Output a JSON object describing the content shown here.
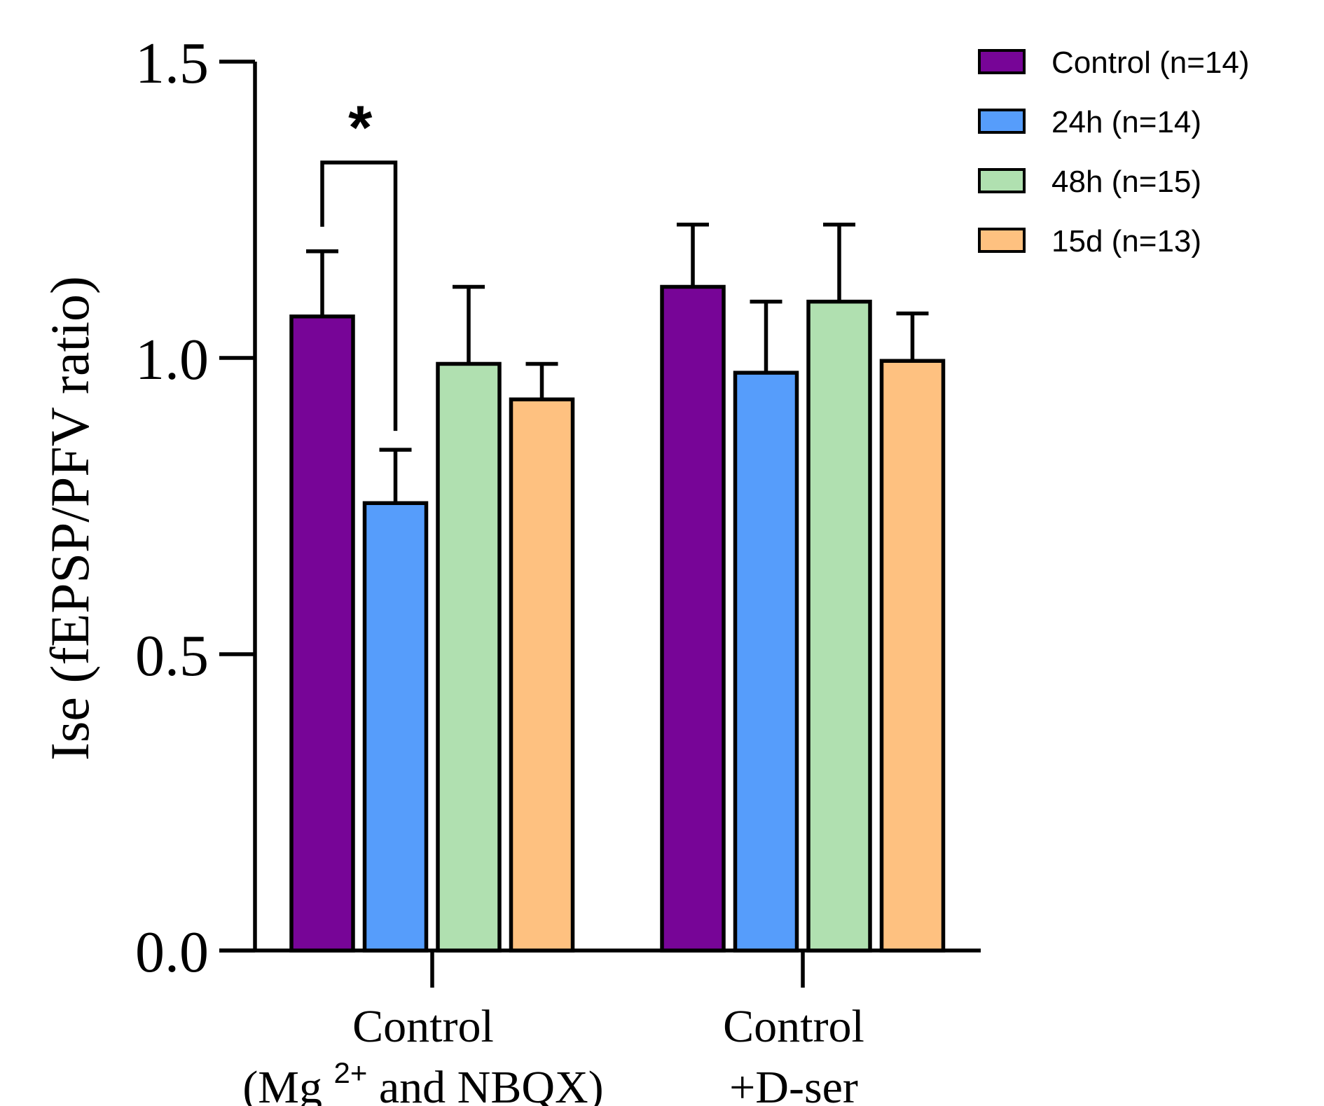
{
  "chart_data": {
    "type": "bar",
    "ylabel": "Ise (fEPSP/PFV ratio)",
    "ylim": [
      0,
      1.5
    ],
    "yticks": [
      "0.0",
      "0.5",
      "1.0",
      "1.5"
    ],
    "ytick_values": [
      0,
      0.5,
      1.0,
      1.5
    ],
    "categories": [
      {
        "line1": "Control",
        "line2_pre": "(Mg ",
        "line2_sup": "2+",
        "line2_post": " and NBQX)"
      },
      {
        "line1": "Control",
        "line2_pre": "+D-ser",
        "line2_sup": "",
        "line2_post": ""
      }
    ],
    "series": [
      {
        "name": "Control (n=14)",
        "color": "#770597",
        "values": [
          1.07,
          1.12
        ],
        "errors": [
          0.11,
          0.105
        ]
      },
      {
        "name": "24h (n=14)",
        "color": "#569dfb",
        "values": [
          0.755,
          0.975
        ],
        "errors": [
          0.09,
          0.12
        ]
      },
      {
        "name": "48h (n=15)",
        "color": "#b0e0b0",
        "values": [
          0.99,
          1.095
        ],
        "errors": [
          0.13,
          0.13
        ]
      },
      {
        "name": "15d (n=13)",
        "color": "#fec180",
        "values": [
          0.93,
          0.995
        ],
        "errors": [
          0.06,
          0.08
        ]
      }
    ],
    "annotations": [
      {
        "text": "*",
        "between": [
          "Control (n=14)",
          "24h (n=14)"
        ],
        "category": 0
      }
    ],
    "legend": "top-right",
    "grid": false
  }
}
